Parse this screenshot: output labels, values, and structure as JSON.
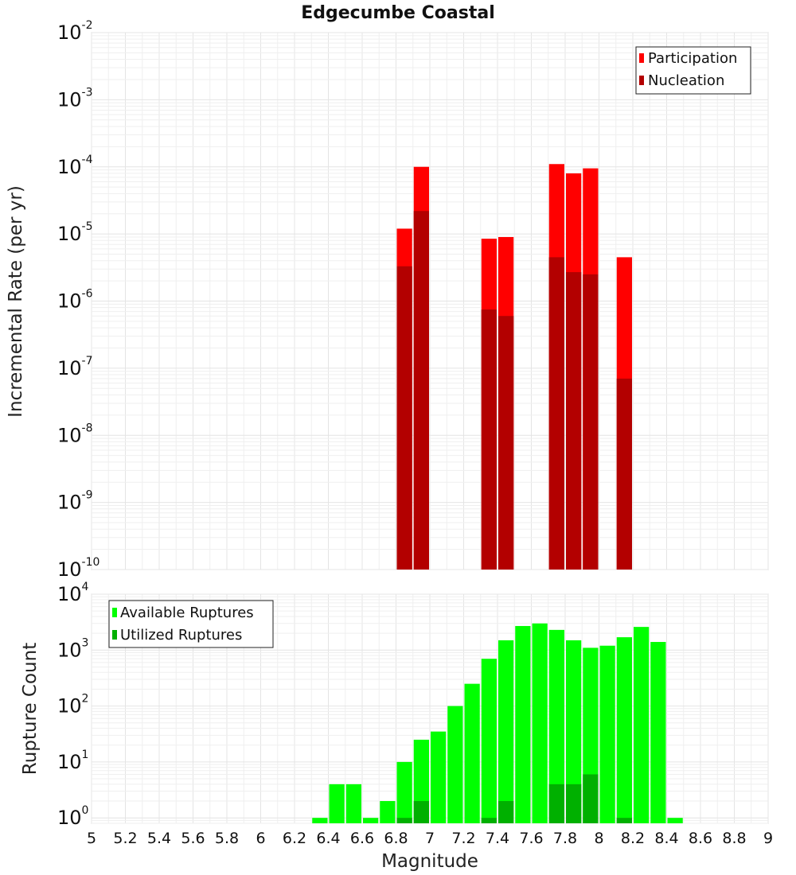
{
  "chart_data": [
    {
      "type": "bar",
      "title": "Edgecumbe Coastal",
      "xlabel": "",
      "ylabel": "Incremental Rate (per yr)",
      "yscale": "log",
      "ylim": [
        1e-10,
        0.01
      ],
      "xlim": [
        5,
        9
      ],
      "bin_width": 0.1,
      "grid": true,
      "legend_position": "top-right",
      "y_ticks": [
        {
          "base": "10",
          "exp": "-10"
        },
        {
          "base": "10",
          "exp": "-9"
        },
        {
          "base": "10",
          "exp": "-8"
        },
        {
          "base": "10",
          "exp": "-7"
        },
        {
          "base": "10",
          "exp": "-6"
        },
        {
          "base": "10",
          "exp": "-5"
        },
        {
          "base": "10",
          "exp": "-4"
        },
        {
          "base": "10",
          "exp": "-3"
        },
        {
          "base": "10",
          "exp": "-2"
        }
      ],
      "x": [
        6.85,
        6.95,
        7.35,
        7.45,
        7.75,
        7.85,
        7.95,
        8.15
      ],
      "series": [
        {
          "name": "Participation",
          "color": "#ff0000",
          "values": [
            1.2e-05,
            0.0001,
            8.5e-06,
            9e-06,
            0.00011,
            8e-05,
            9.5e-05,
            4.5e-06
          ]
        },
        {
          "name": "Nucleation",
          "color": "#b30000",
          "values": [
            3.3e-06,
            2.2e-05,
            7.5e-07,
            6e-07,
            4.5e-06,
            2.7e-06,
            2.5e-06,
            7e-08
          ]
        }
      ]
    },
    {
      "type": "bar",
      "title": "",
      "xlabel": "Magnitude",
      "ylabel": "Rupture Count",
      "yscale": "log",
      "ylim": [
        0.8,
        10000
      ],
      "xlim": [
        5,
        9
      ],
      "bin_width": 0.1,
      "grid": true,
      "legend_position": "top-left",
      "y_ticks": [
        {
          "base": "10",
          "exp": "0"
        },
        {
          "base": "10",
          "exp": "1"
        },
        {
          "base": "10",
          "exp": "2"
        },
        {
          "base": "10",
          "exp": "3"
        },
        {
          "base": "10",
          "exp": "4"
        }
      ],
      "x_ticks": [
        "5",
        "5.2",
        "5.4",
        "5.6",
        "5.8",
        "6",
        "6.2",
        "6.4",
        "6.6",
        "6.8",
        "7",
        "7.2",
        "7.4",
        "7.6",
        "7.8",
        "8",
        "8.2",
        "8.4",
        "8.6",
        "8.8",
        "9"
      ],
      "x": [
        6.35,
        6.45,
        6.55,
        6.65,
        6.75,
        6.85,
        6.95,
        7.05,
        7.15,
        7.25,
        7.35,
        7.45,
        7.55,
        7.65,
        7.75,
        7.85,
        7.95,
        8.05,
        8.15,
        8.25,
        8.35,
        8.45
      ],
      "series": [
        {
          "name": "Available Ruptures",
          "color": "#00ff00",
          "values": [
            1,
            4,
            4,
            1,
            2,
            10,
            25,
            35,
            100,
            250,
            700,
            1500,
            2700,
            3000,
            2300,
            1500,
            1100,
            1200,
            1700,
            2600,
            1400,
            1
          ]
        },
        {
          "name": "Utilized Ruptures",
          "color": "#00b000",
          "values": [
            null,
            null,
            null,
            null,
            null,
            1,
            2,
            null,
            null,
            null,
            1,
            2,
            null,
            null,
            4,
            4,
            6,
            null,
            1,
            null,
            null,
            null
          ]
        }
      ]
    }
  ]
}
